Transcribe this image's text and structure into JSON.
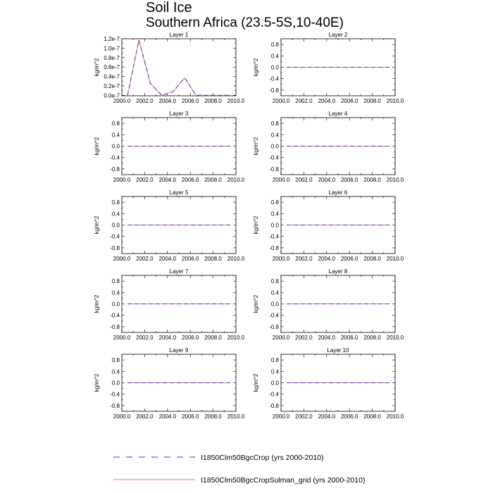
{
  "title": "Soil Ice",
  "subtitle": "Southern Africa (23.5-5S,10-40E)",
  "colors": {
    "series_a": "#3b3bc8",
    "series_b": "#ff7777",
    "axis": "#000000"
  },
  "legend": {
    "placement": "bottom",
    "entries": [
      {
        "label": "I1850Clm50BgcCrop (yrs 2000-2010)",
        "style": "dashed",
        "color": "#3b3bc8"
      },
      {
        "label": "I1850Clm50BgcCropSulman_grid (yrs 2000-2010)",
        "style": "solid",
        "color": "#ff7777"
      }
    ]
  },
  "chart_data": [
    {
      "type": "line",
      "title": "Layer 1",
      "ylabel": "kg/m^2",
      "xlim": [
        2000,
        2010
      ],
      "ylim": [
        -1e-09,
        1.2e-07
      ],
      "yticks": [
        0,
        2e-08,
        4e-08,
        6e-08,
        8e-08,
        1e-07,
        1.2e-07
      ],
      "ytick_labels": [
        "0.0e-7",
        "0.2e-7",
        "0.4e-7",
        "0.6e-7",
        "0.8e-7",
        "1.0e-7",
        "1.2e-7"
      ],
      "xticks": [
        2000,
        2002,
        2004,
        2006,
        2008,
        2010
      ],
      "xtick_labels": [
        "2000.0",
        "2002.0",
        "2004.0",
        "2006.0",
        "2008.0",
        "2010.0"
      ],
      "x": [
        2000.5,
        2001.5,
        2002.5,
        2003.5,
        2004.5,
        2005.5,
        2006.5,
        2007.5,
        2008.5,
        2009.5
      ],
      "series": [
        {
          "values": [
            0,
            1.17e-07,
            2.5e-08,
            0,
            8e-09,
            3.7e-08,
            0,
            0,
            0,
            0
          ]
        },
        {
          "values": [
            0,
            1.17e-07,
            2.5e-08,
            0,
            8e-09,
            3.7e-08,
            0,
            0,
            0,
            0
          ]
        }
      ]
    },
    {
      "type": "line",
      "title": "Layer 2",
      "ylabel": "kg/m^2",
      "xlim": [
        2000,
        2010
      ],
      "ylim": [
        -1,
        1
      ],
      "yticks": [
        -0.8,
        -0.4,
        0,
        0.4,
        0.8
      ],
      "ytick_labels": [
        "-0.8",
        "-0.4",
        "0.0",
        "0.4",
        "0.8"
      ],
      "xticks": [
        2000,
        2002,
        2004,
        2006,
        2008,
        2010
      ],
      "xtick_labels": [
        "2000.0",
        "2002.0",
        "2004.0",
        "2006.0",
        "2008.0",
        "2010.0"
      ],
      "x": [
        2000.5,
        2001.5,
        2002.5,
        2003.5,
        2004.5,
        2005.5,
        2006.5,
        2007.5,
        2008.5,
        2009.5
      ],
      "series": [
        {
          "values": [
            0,
            0,
            0,
            0,
            0,
            0,
            0,
            0,
            0,
            0
          ]
        },
        {
          "values": [
            0,
            0,
            0,
            0,
            0,
            0,
            0,
            0,
            0,
            0
          ]
        }
      ]
    },
    {
      "type": "line",
      "title": "Layer 3",
      "ylabel": "kg/m^2",
      "xlim": [
        2000,
        2010
      ],
      "ylim": [
        -1,
        1
      ],
      "yticks": [
        -0.8,
        -0.4,
        0,
        0.4,
        0.8
      ],
      "ytick_labels": [
        "-0.8",
        "-0.4",
        "0.0",
        "0.4",
        "0.8"
      ],
      "xticks": [
        2000,
        2002,
        2004,
        2006,
        2008,
        2010
      ],
      "xtick_labels": [
        "2000.0",
        "2002.0",
        "2004.0",
        "2006.0",
        "2008.0",
        "2010.0"
      ],
      "x": [
        2000.5,
        2001.5,
        2002.5,
        2003.5,
        2004.5,
        2005.5,
        2006.5,
        2007.5,
        2008.5,
        2009.5
      ],
      "series": [
        {
          "values": [
            0,
            0,
            0,
            0,
            0,
            0,
            0,
            0,
            0,
            0
          ]
        },
        {
          "values": [
            0,
            0,
            0,
            0,
            0,
            0,
            0,
            0,
            0,
            0
          ]
        }
      ]
    },
    {
      "type": "line",
      "title": "Layer 4",
      "ylabel": "kg/m^2",
      "xlim": [
        2000,
        2010
      ],
      "ylim": [
        -1,
        1
      ],
      "yticks": [
        -0.8,
        -0.4,
        0,
        0.4,
        0.8
      ],
      "ytick_labels": [
        "-0.8",
        "-0.4",
        "0.0",
        "0.4",
        "0.8"
      ],
      "xticks": [
        2000,
        2002,
        2004,
        2006,
        2008,
        2010
      ],
      "xtick_labels": [
        "2000.0",
        "2002.0",
        "2004.0",
        "2006.0",
        "2008.0",
        "2010.0"
      ],
      "x": [
        2000.5,
        2001.5,
        2002.5,
        2003.5,
        2004.5,
        2005.5,
        2006.5,
        2007.5,
        2008.5,
        2009.5
      ],
      "series": [
        {
          "values": [
            0,
            0,
            0,
            0,
            0,
            0,
            0,
            0,
            0,
            0
          ]
        },
        {
          "values": [
            0,
            0,
            0,
            0,
            0,
            0,
            0,
            0,
            0,
            0
          ]
        }
      ]
    },
    {
      "type": "line",
      "title": "Layer 5",
      "ylabel": "kg/m^2",
      "xlim": [
        2000,
        2010
      ],
      "ylim": [
        -1,
        1
      ],
      "yticks": [
        -0.8,
        -0.4,
        0,
        0.4,
        0.8
      ],
      "ytick_labels": [
        "-0.8",
        "-0.4",
        "0.0",
        "0.4",
        "0.8"
      ],
      "xticks": [
        2000,
        2002,
        2004,
        2006,
        2008,
        2010
      ],
      "xtick_labels": [
        "2000.0",
        "2002.0",
        "2004.0",
        "2006.0",
        "2008.0",
        "2010.0"
      ],
      "x": [
        2000.5,
        2001.5,
        2002.5,
        2003.5,
        2004.5,
        2005.5,
        2006.5,
        2007.5,
        2008.5,
        2009.5
      ],
      "series": [
        {
          "values": [
            0,
            0,
            0,
            0,
            0,
            0,
            0,
            0,
            0,
            0
          ]
        },
        {
          "values": [
            0,
            0,
            0,
            0,
            0,
            0,
            0,
            0,
            0,
            0
          ]
        }
      ]
    },
    {
      "type": "line",
      "title": "Layer 6",
      "ylabel": "kg/m^2",
      "xlim": [
        2000,
        2010
      ],
      "ylim": [
        -1,
        1
      ],
      "yticks": [
        -0.8,
        -0.4,
        0,
        0.4,
        0.8
      ],
      "ytick_labels": [
        "-0.8",
        "-0.4",
        "0.0",
        "0.4",
        "0.8"
      ],
      "xticks": [
        2000,
        2002,
        2004,
        2006,
        2008,
        2010
      ],
      "xtick_labels": [
        "2000.0",
        "2002.0",
        "2004.0",
        "2006.0",
        "2008.0",
        "2010.0"
      ],
      "x": [
        2000.5,
        2001.5,
        2002.5,
        2003.5,
        2004.5,
        2005.5,
        2006.5,
        2007.5,
        2008.5,
        2009.5
      ],
      "series": [
        {
          "values": [
            0,
            0,
            0,
            0,
            0,
            0,
            0,
            0,
            0,
            0
          ]
        },
        {
          "values": [
            0,
            0,
            0,
            0,
            0,
            0,
            0,
            0,
            0,
            0
          ]
        }
      ]
    },
    {
      "type": "line",
      "title": "Layer 7",
      "ylabel": "kg/m^2",
      "xlim": [
        2000,
        2010
      ],
      "ylim": [
        -1,
        1
      ],
      "yticks": [
        -0.8,
        -0.4,
        0,
        0.4,
        0.8
      ],
      "ytick_labels": [
        "-0.8",
        "-0.4",
        "0.0",
        "0.4",
        "0.8"
      ],
      "xticks": [
        2000,
        2002,
        2004,
        2006,
        2008,
        2010
      ],
      "xtick_labels": [
        "2000.0",
        "2002.0",
        "2004.0",
        "2006.0",
        "2008.0",
        "2010.0"
      ],
      "x": [
        2000.5,
        2001.5,
        2002.5,
        2003.5,
        2004.5,
        2005.5,
        2006.5,
        2007.5,
        2008.5,
        2009.5
      ],
      "series": [
        {
          "values": [
            0,
            0,
            0,
            0,
            0,
            0,
            0,
            0,
            0,
            0
          ]
        },
        {
          "values": [
            0,
            0,
            0,
            0,
            0,
            0,
            0,
            0,
            0,
            0
          ]
        }
      ]
    },
    {
      "type": "line",
      "title": "Layer 8",
      "ylabel": "kg/m^2",
      "xlim": [
        2000,
        2010
      ],
      "ylim": [
        -1,
        1
      ],
      "yticks": [
        -0.8,
        -0.4,
        0,
        0.4,
        0.8
      ],
      "ytick_labels": [
        "-0.8",
        "-0.4",
        "0.0",
        "0.4",
        "0.8"
      ],
      "xticks": [
        2000,
        2002,
        2004,
        2006,
        2008,
        2010
      ],
      "xtick_labels": [
        "2000.0",
        "2002.0",
        "2004.0",
        "2006.0",
        "2008.0",
        "2010.0"
      ],
      "x": [
        2000.5,
        2001.5,
        2002.5,
        2003.5,
        2004.5,
        2005.5,
        2006.5,
        2007.5,
        2008.5,
        2009.5
      ],
      "series": [
        {
          "values": [
            0,
            0,
            0,
            0,
            0,
            0,
            0,
            0,
            0,
            0
          ]
        },
        {
          "values": [
            0,
            0,
            0,
            0,
            0,
            0,
            0,
            0,
            0,
            0
          ]
        }
      ]
    },
    {
      "type": "line",
      "title": "Layer 9",
      "ylabel": "kg/m^2",
      "xlim": [
        2000,
        2010
      ],
      "ylim": [
        -1,
        1
      ],
      "yticks": [
        -0.8,
        -0.4,
        0,
        0.4,
        0.8
      ],
      "ytick_labels": [
        "-0.8",
        "-0.4",
        "0.0",
        "0.4",
        "0.8"
      ],
      "xticks": [
        2000,
        2002,
        2004,
        2006,
        2008,
        2010
      ],
      "xtick_labels": [
        "2000.0",
        "2002.0",
        "2004.0",
        "2006.0",
        "2008.0",
        "2010.0"
      ],
      "x": [
        2000.5,
        2001.5,
        2002.5,
        2003.5,
        2004.5,
        2005.5,
        2006.5,
        2007.5,
        2008.5,
        2009.5
      ],
      "series": [
        {
          "values": [
            0,
            0,
            0,
            0,
            0,
            0,
            0,
            0,
            0,
            0
          ]
        },
        {
          "values": [
            0,
            0,
            0,
            0,
            0,
            0,
            0,
            0,
            0,
            0
          ]
        }
      ]
    },
    {
      "type": "line",
      "title": "Layer 10",
      "ylabel": "kg/m^2",
      "xlim": [
        2000,
        2010
      ],
      "ylim": [
        -1,
        1
      ],
      "yticks": [
        -0.8,
        -0.4,
        0,
        0.4,
        0.8
      ],
      "ytick_labels": [
        "-0.8",
        "-0.4",
        "0.0",
        "0.4",
        "0.8"
      ],
      "xticks": [
        2000,
        2002,
        2004,
        2006,
        2008,
        2010
      ],
      "xtick_labels": [
        "2000.0",
        "2002.0",
        "2004.0",
        "2006.0",
        "2008.0",
        "2010.0"
      ],
      "x": [
        2000.5,
        2001.5,
        2002.5,
        2003.5,
        2004.5,
        2005.5,
        2006.5,
        2007.5,
        2008.5,
        2009.5
      ],
      "series": [
        {
          "values": [
            0,
            0,
            0,
            0,
            0,
            0,
            0,
            0,
            0,
            0
          ]
        },
        {
          "values": [
            0,
            0,
            0,
            0,
            0,
            0,
            0,
            0,
            0,
            0
          ]
        }
      ]
    }
  ]
}
